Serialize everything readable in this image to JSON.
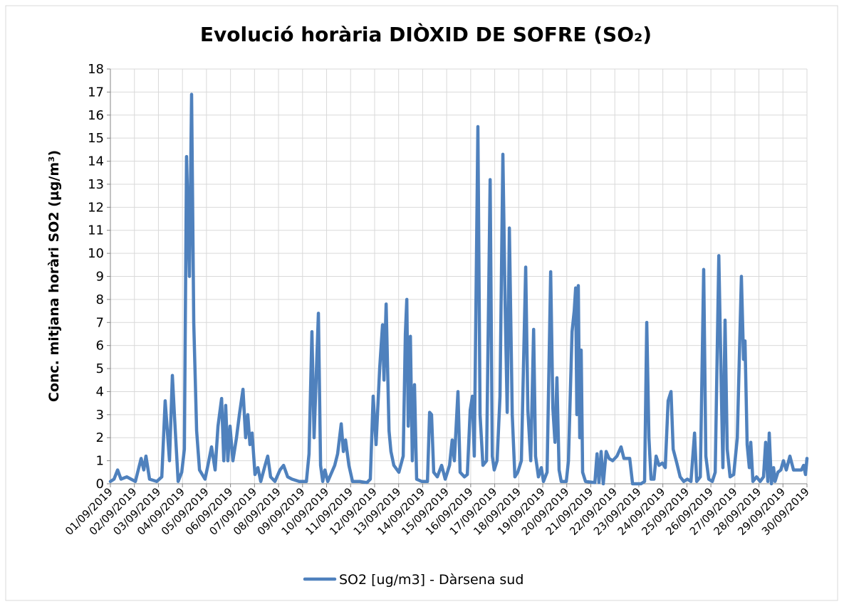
{
  "chart_data": {
    "type": "line",
    "title": "Evolució horària DIÒXID DE SOFRE (SO₂)",
    "y_label": "Conc. mitjana horàri SO2 (µg/m³)",
    "xlim": [
      0,
      29
    ],
    "xticks": [
      {
        "value": 0,
        "label": "01/09/2019"
      },
      {
        "value": 1,
        "label": "02/09/2019"
      },
      {
        "value": 2,
        "label": "03/09/2019"
      },
      {
        "value": 3,
        "label": "04/09/2019"
      },
      {
        "value": 4,
        "label": "05/09/2019"
      },
      {
        "value": 5,
        "label": "06/09/2019"
      },
      {
        "value": 6,
        "label": "07/09/2019"
      },
      {
        "value": 7,
        "label": "08/09/2019"
      },
      {
        "value": 8,
        "label": "09/09/2019"
      },
      {
        "value": 9,
        "label": "10/09/2019"
      },
      {
        "value": 10,
        "label": "11/09/2019"
      },
      {
        "value": 11,
        "label": "12/09/2019"
      },
      {
        "value": 12,
        "label": "13/09/2019"
      },
      {
        "value": 13,
        "label": "14/09/2019"
      },
      {
        "value": 14,
        "label": "15/09/2019"
      },
      {
        "value": 15,
        "label": "16/09/2019"
      },
      {
        "value": 16,
        "label": "17/09/2019"
      },
      {
        "value": 17,
        "label": "18/09/2019"
      },
      {
        "value": 18,
        "label": "19/09/2019"
      },
      {
        "value": 19,
        "label": "20/09/2019"
      },
      {
        "value": 20,
        "label": "21/09/2019"
      },
      {
        "value": 21,
        "label": "22/09/2019"
      },
      {
        "value": 22,
        "label": "23/09/2019"
      },
      {
        "value": 23,
        "label": "24/09/2019"
      },
      {
        "value": 24,
        "label": "25/09/2019"
      },
      {
        "value": 25,
        "label": "26/09/2019"
      },
      {
        "value": 26,
        "label": "27/09/2019"
      },
      {
        "value": 27,
        "label": "28/09/2019"
      },
      {
        "value": 28,
        "label": "29/09/2019"
      },
      {
        "value": 29,
        "label": "30/09/2019"
      }
    ],
    "ylim": [
      0,
      18
    ],
    "yticks": [
      0,
      1,
      2,
      3,
      4,
      5,
      6,
      7,
      8,
      9,
      10,
      11,
      12,
      13,
      14,
      15,
      16,
      17,
      18
    ],
    "grid": true,
    "legend_position": "bottom",
    "x": [
      0,
      0.15,
      0.3,
      0.44,
      0.68,
      1.04,
      1.28,
      1.39,
      1.48,
      1.63,
      1.93,
      2.14,
      2.28,
      2.46,
      2.58,
      2.67,
      2.82,
      2.97,
      3.08,
      3.17,
      3.29,
      3.38,
      3.47,
      3.59,
      3.71,
      3.94,
      4.06,
      4.21,
      4.36,
      4.48,
      4.63,
      4.72,
      4.8,
      4.89,
      4.98,
      5.1,
      5.25,
      5.37,
      5.52,
      5.63,
      5.72,
      5.81,
      5.9,
      6.02,
      6.14,
      6.26,
      6.44,
      6.55,
      6.67,
      6.85,
      7.06,
      7.21,
      7.38,
      7.56,
      7.86,
      8.16,
      8.27,
      8.39,
      8.48,
      8.66,
      8.75,
      8.84,
      8.93,
      9.05,
      9.34,
      9.46,
      9.61,
      9.7,
      9.79,
      9.93,
      10.08,
      10.38,
      10.68,
      10.82,
      10.94,
      11.06,
      11.21,
      11.33,
      11.39,
      11.48,
      11.6,
      11.68,
      11.8,
      12.01,
      12.19,
      12.28,
      12.34,
      12.4,
      12.49,
      12.57,
      12.66,
      12.75,
      12.96,
      13.2,
      13.29,
      13.37,
      13.46,
      13.61,
      13.79,
      13.94,
      14.12,
      14.23,
      14.32,
      14.47,
      14.56,
      14.74,
      14.86,
      14.98,
      15.07,
      15.15,
      15.3,
      15.39,
      15.51,
      15.66,
      15.81,
      15.9,
      15.98,
      16.1,
      16.22,
      16.34,
      16.43,
      16.52,
      16.61,
      16.73,
      16.84,
      16.96,
      17.11,
      17.29,
      17.38,
      17.5,
      17.62,
      17.7,
      17.82,
      17.94,
      18.03,
      18.18,
      18.33,
      18.42,
      18.51,
      18.59,
      18.68,
      18.77,
      18.98,
      19.07,
      19.22,
      19.31,
      19.37,
      19.42,
      19.48,
      19.54,
      19.6,
      19.66,
      19.78,
      20.17,
      20.26,
      20.34,
      20.43,
      20.52,
      20.64,
      20.76,
      20.91,
      21.09,
      21.26,
      21.38,
      21.62,
      21.74,
      22.09,
      22.24,
      22.33,
      22.42,
      22.51,
      22.63,
      22.72,
      22.84,
      22.98,
      23.1,
      23.22,
      23.34,
      23.43,
      23.58,
      23.72,
      23.87,
      24.02,
      24.17,
      24.32,
      24.41,
      24.56,
      24.7,
      24.79,
      24.91,
      25.06,
      25.18,
      25.33,
      25.44,
      25.5,
      25.59,
      25.68,
      25.8,
      25.95,
      26.1,
      26.27,
      26.36,
      26.42,
      26.51,
      26.6,
      26.66,
      26.75,
      26.9,
      27.05,
      27.19,
      27.28,
      27.37,
      27.43,
      27.52,
      27.61,
      27.67,
      27.79,
      27.91,
      28.02,
      28.14,
      28.29,
      28.44,
      28.62,
      28.77,
      28.86,
      28.94,
      29
    ],
    "series": [
      {
        "name": "SO2 [ug/m3] - Dàrsena sud",
        "color": "#4f81bd",
        "values": [
          0.1,
          0.2,
          0.6,
          0.2,
          0.3,
          0.1,
          1.1,
          0.6,
          1.2,
          0.2,
          0.1,
          0.3,
          3.6,
          1.0,
          4.7,
          2.9,
          0.1,
          0.5,
          1.5,
          14.2,
          9.0,
          16.9,
          7.0,
          2.3,
          0.6,
          0.2,
          0.8,
          1.6,
          0.6,
          2.5,
          3.7,
          1.0,
          3.4,
          1.0,
          2.5,
          1.0,
          2.0,
          3.0,
          4.1,
          2.0,
          3.0,
          1.7,
          2.2,
          0.4,
          0.7,
          0.1,
          0.8,
          1.2,
          0.3,
          0.1,
          0.6,
          0.8,
          0.3,
          0.2,
          0.1,
          0.1,
          1.3,
          6.6,
          2.0,
          7.4,
          0.8,
          0.1,
          0.6,
          0.1,
          0.8,
          1.3,
          2.6,
          1.4,
          1.9,
          0.8,
          0.1,
          0.1,
          0.05,
          0.2,
          3.8,
          1.7,
          5.0,
          6.9,
          4.5,
          7.8,
          2.3,
          1.4,
          0.8,
          0.5,
          1.2,
          6.5,
          8.0,
          2.5,
          6.4,
          1.0,
          4.3,
          0.2,
          0.1,
          0.1,
          3.1,
          3.0,
          0.5,
          0.3,
          0.8,
          0.2,
          0.8,
          1.9,
          1.0,
          4.0,
          0.5,
          0.3,
          0.4,
          3.2,
          3.8,
          1.2,
          15.5,
          3.0,
          0.8,
          1.0,
          13.2,
          1.2,
          0.6,
          1.0,
          3.8,
          14.3,
          8.0,
          3.1,
          11.1,
          3.0,
          0.3,
          0.5,
          1.0,
          9.4,
          3.2,
          1.0,
          6.7,
          1.2,
          0.3,
          0.7,
          0.1,
          0.5,
          9.2,
          3.3,
          1.8,
          4.6,
          0.6,
          0.1,
          0.1,
          1.0,
          6.6,
          7.5,
          8.5,
          3.0,
          8.6,
          2.0,
          5.8,
          0.5,
          0.1,
          0.05,
          1.3,
          0.05,
          1.4,
          0.0,
          1.4,
          1.1,
          1.0,
          1.2,
          1.6,
          1.1,
          1.1,
          0.0,
          0.0,
          0.1,
          7.0,
          2.0,
          0.2,
          0.2,
          1.2,
          0.8,
          0.9,
          0.7,
          3.6,
          4.0,
          1.5,
          0.9,
          0.3,
          0.1,
          0.2,
          0.1,
          2.2,
          0.1,
          0.3,
          9.3,
          1.2,
          0.2,
          0.1,
          0.5,
          9.9,
          3.8,
          0.7,
          7.1,
          1.5,
          0.3,
          0.4,
          2.0,
          9.0,
          5.4,
          6.2,
          1.7,
          0.7,
          1.8,
          0.1,
          0.3,
          0.1,
          0.3,
          1.8,
          0.1,
          2.2,
          0.0,
          0.7,
          0.1,
          0.5,
          0.6,
          1.0,
          0.6,
          1.2,
          0.6,
          0.6,
          0.6,
          0.8,
          0.4,
          1.1
        ]
      }
    ]
  }
}
